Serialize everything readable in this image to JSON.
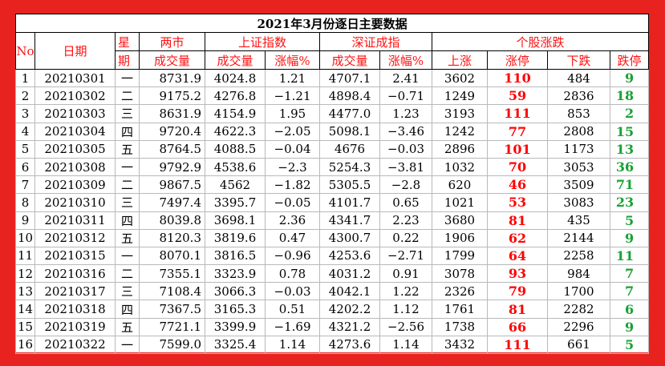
{
  "title": "2021年3月份逐日主要数据",
  "headers": {
    "no": "No",
    "date": "日期",
    "weekday_1": "星",
    "weekday_2": "期",
    "both_1": "两市",
    "both_2": "成交量",
    "sh": "上证指数",
    "sh_vol": "成交量",
    "sh_chg": "涨幅%",
    "sz": "深证成指",
    "sz_vol": "成交量",
    "sz_chg": "涨幅%",
    "stocks": "个股涨跌",
    "up": "上涨",
    "limit_up": "涨停",
    "down": "下跌",
    "limit_down": "跌停"
  },
  "rows": [
    {
      "no": "1",
      "date": "20210301",
      "wd": "一",
      "both": "8731.9",
      "sh_vol": "4024.8",
      "sh_chg": "1.21",
      "sz_vol": "4707.1",
      "sz_chg": "2.41",
      "up": "3602",
      "limit_up": "110",
      "down": "484",
      "limit_down": "9"
    },
    {
      "no": "2",
      "date": "20210302",
      "wd": "二",
      "both": "9175.2",
      "sh_vol": "4276.8",
      "sh_chg": "−1.21",
      "sz_vol": "4898.4",
      "sz_chg": "−0.71",
      "up": "1249",
      "limit_up": "59",
      "down": "2836",
      "limit_down": "18"
    },
    {
      "no": "3",
      "date": "20210303",
      "wd": "三",
      "both": "8631.9",
      "sh_vol": "4154.9",
      "sh_chg": "1.95",
      "sz_vol": "4477.0",
      "sz_chg": "1.23",
      "up": "3193",
      "limit_up": "111",
      "down": "853",
      "limit_down": "2"
    },
    {
      "no": "4",
      "date": "20210304",
      "wd": "四",
      "both": "9720.4",
      "sh_vol": "4622.3",
      "sh_chg": "−2.05",
      "sz_vol": "5098.1",
      "sz_chg": "−3.46",
      "up": "1242",
      "limit_up": "77",
      "down": "2808",
      "limit_down": "15"
    },
    {
      "no": "5",
      "date": "20210305",
      "wd": "五",
      "both": "8764.5",
      "sh_vol": "4088.5",
      "sh_chg": "−0.04",
      "sz_vol": "4676",
      "sz_chg": "−0.03",
      "up": "2896",
      "limit_up": "101",
      "down": "1173",
      "limit_down": "13"
    },
    {
      "no": "6",
      "date": "20210308",
      "wd": "一",
      "both": "9792.9",
      "sh_vol": "4538.6",
      "sh_chg": "−2.3",
      "sz_vol": "5254.3",
      "sz_chg": "−3.81",
      "up": "1032",
      "limit_up": "70",
      "down": "3053",
      "limit_down": "36"
    },
    {
      "no": "7",
      "date": "20210309",
      "wd": "二",
      "both": "9867.5",
      "sh_vol": "4562",
      "sh_chg": "−1.82",
      "sz_vol": "5305.5",
      "sz_chg": "−2.8",
      "up": "620",
      "limit_up": "46",
      "down": "3509",
      "limit_down": "71"
    },
    {
      "no": "8",
      "date": "20210310",
      "wd": "三",
      "both": "7497.4",
      "sh_vol": "3395.7",
      "sh_chg": "−0.05",
      "sz_vol": "4101.7",
      "sz_chg": "0.65",
      "up": "1021",
      "limit_up": "53",
      "down": "3083",
      "limit_down": "23"
    },
    {
      "no": "9",
      "date": "20210311",
      "wd": "四",
      "both": "8039.8",
      "sh_vol": "3698.1",
      "sh_chg": "2.36",
      "sz_vol": "4341.7",
      "sz_chg": "2.23",
      "up": "3680",
      "limit_up": "81",
      "down": "435",
      "limit_down": "5"
    },
    {
      "no": "10",
      "date": "20210312",
      "wd": "五",
      "both": "8120.3",
      "sh_vol": "3819.6",
      "sh_chg": "0.47",
      "sz_vol": "4300.7",
      "sz_chg": "0.22",
      "up": "1906",
      "limit_up": "62",
      "down": "2144",
      "limit_down": "9"
    },
    {
      "no": "11",
      "date": "20210315",
      "wd": "一",
      "both": "8070.1",
      "sh_vol": "3816.5",
      "sh_chg": "−0.96",
      "sz_vol": "4253.6",
      "sz_chg": "−2.71",
      "up": "1799",
      "limit_up": "64",
      "down": "2258",
      "limit_down": "11"
    },
    {
      "no": "12",
      "date": "20210316",
      "wd": "二",
      "both": "7355.1",
      "sh_vol": "3323.9",
      "sh_chg": "0.78",
      "sz_vol": "4031.2",
      "sz_chg": "0.91",
      "up": "3078",
      "limit_up": "93",
      "down": "984",
      "limit_down": "7"
    },
    {
      "no": "13",
      "date": "20210317",
      "wd": "三",
      "both": "7108.4",
      "sh_vol": "3066.3",
      "sh_chg": "−0.03",
      "sz_vol": "4042.1",
      "sz_chg": "1.22",
      "up": "2326",
      "limit_up": "79",
      "down": "1700",
      "limit_down": "7"
    },
    {
      "no": "14",
      "date": "20210318",
      "wd": "四",
      "both": "7367.5",
      "sh_vol": "3165.3",
      "sh_chg": "0.51",
      "sz_vol": "4202.2",
      "sz_chg": "1.12",
      "up": "1761",
      "limit_up": "81",
      "down": "2282",
      "limit_down": "6"
    },
    {
      "no": "15",
      "date": "20210319",
      "wd": "五",
      "both": "7721.1",
      "sh_vol": "3399.9",
      "sh_chg": "−1.69",
      "sz_vol": "4321.2",
      "sz_chg": "−2.56",
      "up": "1738",
      "limit_up": "66",
      "down": "2296",
      "limit_down": "9"
    },
    {
      "no": "16",
      "date": "20210322",
      "wd": "一",
      "both": "7599.0",
      "sh_vol": "3325.4",
      "sh_chg": "1.14",
      "sz_vol": "4273.6",
      "sz_chg": "1.14",
      "up": "3432",
      "limit_up": "111",
      "down": "661",
      "limit_down": "5"
    }
  ]
}
